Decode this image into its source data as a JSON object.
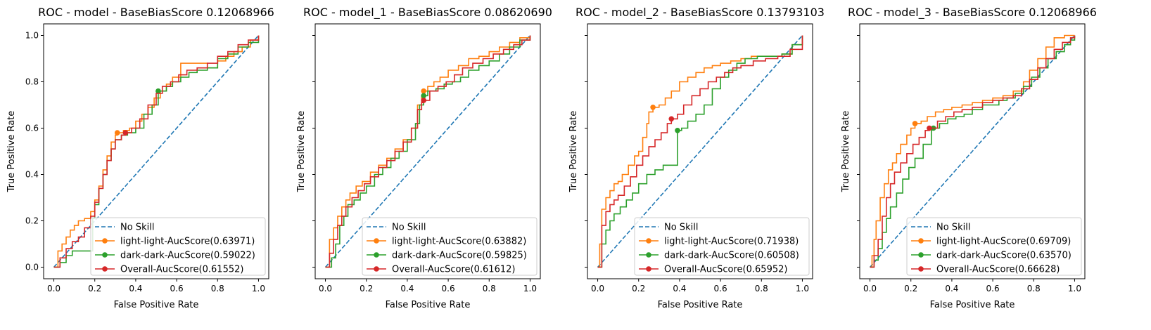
{
  "figure": {
    "x_label": "False Positive Rate",
    "y_label": "True Positive Rate",
    "x_ticks": [
      "0.0",
      "0.2",
      "0.4",
      "0.6",
      "0.8",
      "1.0"
    ],
    "y_ticks": [
      "0.0",
      "0.2",
      "0.4",
      "0.6",
      "0.8",
      "1.0"
    ],
    "colors": {
      "no_skill": "#1f77b4",
      "light": "#ff7f0e",
      "dark": "#2ca02c",
      "overall": "#d62728"
    }
  },
  "chart_data": [
    {
      "type": "line",
      "title": "ROC - model - BaseBiasScore 0.12068966",
      "xlabel": "False Positive Rate",
      "ylabel": "True Positive Rate",
      "xlim": [
        -0.05,
        1.05
      ],
      "ylim": [
        -0.05,
        1.05
      ],
      "grid": false,
      "legend_position": "lower-right",
      "series": [
        {
          "name": "No Skill",
          "color": "#1f77b4",
          "style": "dashed",
          "x": [
            0,
            1
          ],
          "y": [
            0,
            1
          ]
        },
        {
          "name": "light-light-AucScore(0.63971)",
          "color": "#ff7f0e",
          "style": "step",
          "x": [
            0,
            0.02,
            0.04,
            0.06,
            0.08,
            0.1,
            0.12,
            0.15,
            0.18,
            0.2,
            0.22,
            0.24,
            0.26,
            0.28,
            0.3,
            0.31,
            0.34,
            0.37,
            0.4,
            0.43,
            0.46,
            0.49,
            0.52,
            0.55,
            0.58,
            0.62,
            0.67,
            0.72,
            0.75,
            0.8,
            0.84,
            0.88,
            0.92,
            0.96,
            1.0
          ],
          "y": [
            0,
            0.07,
            0.1,
            0.13,
            0.16,
            0.18,
            0.2,
            0.21,
            0.24,
            0.29,
            0.35,
            0.42,
            0.48,
            0.54,
            0.57,
            0.58,
            0.59,
            0.6,
            0.63,
            0.66,
            0.69,
            0.73,
            0.76,
            0.79,
            0.82,
            0.88,
            0.88,
            0.88,
            0.86,
            0.89,
            0.91,
            0.93,
            0.95,
            0.98,
            1.0
          ],
          "marker": [
            0.31,
            0.58
          ]
        },
        {
          "name": "dark-dark-AucScore(0.59022)",
          "color": "#2ca02c",
          "style": "step",
          "x": [
            0,
            0.03,
            0.06,
            0.09,
            0.12,
            0.15,
            0.19,
            0.2,
            0.22,
            0.24,
            0.26,
            0.28,
            0.3,
            0.33,
            0.36,
            0.4,
            0.44,
            0.48,
            0.51,
            0.55,
            0.58,
            0.62,
            0.66,
            0.7,
            0.75,
            0.8,
            0.85,
            0.9,
            0.95,
            1.0
          ],
          "y": [
            0,
            0.02,
            0.05,
            0.07,
            0.07,
            0.07,
            0.21,
            0.27,
            0.34,
            0.4,
            0.46,
            0.51,
            0.55,
            0.57,
            0.58,
            0.6,
            0.66,
            0.7,
            0.76,
            0.78,
            0.8,
            0.82,
            0.84,
            0.85,
            0.86,
            0.9,
            0.92,
            0.95,
            0.97,
            1.0
          ],
          "marker": [
            0.51,
            0.76
          ]
        },
        {
          "name": "Overall-AucScore(0.61552)",
          "color": "#d62728",
          "style": "step",
          "x": [
            0,
            0.03,
            0.06,
            0.09,
            0.12,
            0.15,
            0.18,
            0.2,
            0.22,
            0.24,
            0.26,
            0.28,
            0.3,
            0.33,
            0.35,
            0.38,
            0.42,
            0.46,
            0.5,
            0.53,
            0.57,
            0.61,
            0.65,
            0.7,
            0.75,
            0.8,
            0.85,
            0.9,
            0.95,
            1.0
          ],
          "y": [
            0,
            0.04,
            0.08,
            0.11,
            0.13,
            0.17,
            0.22,
            0.28,
            0.34,
            0.4,
            0.46,
            0.51,
            0.55,
            0.57,
            0.58,
            0.6,
            0.64,
            0.7,
            0.75,
            0.78,
            0.8,
            0.83,
            0.85,
            0.86,
            0.88,
            0.91,
            0.93,
            0.96,
            0.98,
            1.0
          ],
          "marker": [
            0.35,
            0.58
          ]
        }
      ]
    },
    {
      "type": "line",
      "title": "ROC - model_1 - BaseBiasScore 0.08620690",
      "xlabel": "False Positive Rate",
      "ylabel": "True Positive Rate",
      "xlim": [
        -0.05,
        1.05
      ],
      "ylim": [
        -0.05,
        1.05
      ],
      "grid": false,
      "legend_position": "lower-right",
      "series": [
        {
          "name": "No Skill",
          "color": "#1f77b4",
          "style": "dashed",
          "x": [
            0,
            1
          ],
          "y": [
            0,
            1
          ]
        },
        {
          "name": "light-light-AucScore(0.63882)",
          "color": "#ff7f0e",
          "style": "step",
          "x": [
            0,
            0.02,
            0.04,
            0.06,
            0.08,
            0.1,
            0.12,
            0.15,
            0.18,
            0.22,
            0.26,
            0.3,
            0.34,
            0.38,
            0.42,
            0.45,
            0.47,
            0.48,
            0.5,
            0.53,
            0.56,
            0.6,
            0.65,
            0.7,
            0.75,
            0.8,
            0.85,
            0.9,
            0.95,
            1.0
          ],
          "y": [
            0,
            0.12,
            0.17,
            0.22,
            0.26,
            0.29,
            0.32,
            0.35,
            0.37,
            0.41,
            0.44,
            0.47,
            0.51,
            0.55,
            0.6,
            0.7,
            0.74,
            0.76,
            0.78,
            0.8,
            0.82,
            0.85,
            0.87,
            0.9,
            0.91,
            0.93,
            0.95,
            0.97,
            0.99,
            1.0
          ],
          "marker": [
            0.48,
            0.76
          ]
        },
        {
          "name": "dark-dark-AucScore(0.59825)",
          "color": "#2ca02c",
          "style": "step",
          "x": [
            0,
            0.03,
            0.05,
            0.07,
            0.09,
            0.11,
            0.14,
            0.17,
            0.2,
            0.24,
            0.28,
            0.32,
            0.36,
            0.4,
            0.44,
            0.46,
            0.48,
            0.5,
            0.54,
            0.58,
            0.62,
            0.66,
            0.7,
            0.75,
            0.8,
            0.85,
            0.9,
            0.95,
            1.0
          ],
          "y": [
            0,
            0.04,
            0.1,
            0.18,
            0.22,
            0.27,
            0.29,
            0.32,
            0.35,
            0.4,
            0.43,
            0.47,
            0.5,
            0.55,
            0.62,
            0.7,
            0.74,
            0.76,
            0.77,
            0.79,
            0.8,
            0.82,
            0.85,
            0.87,
            0.89,
            0.92,
            0.95,
            0.98,
            1.0
          ],
          "marker": [
            0.48,
            0.74
          ]
        },
        {
          "name": "Overall-AucScore(0.61612)",
          "color": "#d62728",
          "style": "step",
          "x": [
            0,
            0.02,
            0.04,
            0.06,
            0.08,
            0.1,
            0.13,
            0.16,
            0.19,
            0.22,
            0.26,
            0.3,
            0.34,
            0.38,
            0.42,
            0.45,
            0.47,
            0.48,
            0.51,
            0.55,
            0.59,
            0.63,
            0.67,
            0.72,
            0.77,
            0.82,
            0.87,
            0.92,
            0.96,
            1.0
          ],
          "y": [
            0,
            0.06,
            0.12,
            0.18,
            0.22,
            0.26,
            0.3,
            0.33,
            0.36,
            0.39,
            0.43,
            0.46,
            0.5,
            0.54,
            0.6,
            0.68,
            0.71,
            0.72,
            0.76,
            0.78,
            0.8,
            0.83,
            0.86,
            0.88,
            0.9,
            0.92,
            0.94,
            0.96,
            0.98,
            1.0
          ],
          "marker": [
            0.48,
            0.72
          ]
        }
      ]
    },
    {
      "type": "line",
      "title": "ROC - model_2 - BaseBiasScore 0.13793103",
      "xlabel": "False Positive Rate",
      "ylabel": "True Positive Rate",
      "xlim": [
        -0.05,
        1.05
      ],
      "ylim": [
        -0.05,
        1.05
      ],
      "grid": false,
      "legend_position": "lower-right",
      "series": [
        {
          "name": "No Skill",
          "color": "#1f77b4",
          "style": "dashed",
          "x": [
            0,
            1
          ],
          "y": [
            0,
            1
          ]
        },
        {
          "name": "light-light-AucScore(0.71938)",
          "color": "#ff7f0e",
          "style": "step",
          "x": [
            0,
            0.01,
            0.02,
            0.04,
            0.06,
            0.08,
            0.1,
            0.12,
            0.15,
            0.18,
            0.2,
            0.22,
            0.24,
            0.25,
            0.27,
            0.3,
            0.33,
            0.36,
            0.4,
            0.44,
            0.48,
            0.52,
            0.56,
            0.6,
            0.65,
            0.7,
            0.75,
            0.8,
            0.85,
            0.9,
            0.95,
            1.0
          ],
          "y": [
            0,
            0.1,
            0.25,
            0.3,
            0.33,
            0.36,
            0.37,
            0.4,
            0.44,
            0.48,
            0.5,
            0.56,
            0.62,
            0.67,
            0.69,
            0.7,
            0.73,
            0.76,
            0.8,
            0.82,
            0.84,
            0.86,
            0.87,
            0.88,
            0.89,
            0.9,
            0.91,
            0.91,
            0.91,
            0.92,
            0.96,
            1.0
          ],
          "marker": [
            0.27,
            0.69
          ]
        },
        {
          "name": "dark-dark-AucScore(0.60508)",
          "color": "#2ca02c",
          "style": "step",
          "x": [
            0,
            0.02,
            0.04,
            0.06,
            0.08,
            0.11,
            0.14,
            0.17,
            0.2,
            0.24,
            0.28,
            0.32,
            0.37,
            0.39,
            0.41,
            0.44,
            0.48,
            0.52,
            0.56,
            0.6,
            0.64,
            0.68,
            0.72,
            0.78,
            0.84,
            0.9,
            0.95,
            1.0
          ],
          "y": [
            0,
            0.1,
            0.16,
            0.2,
            0.23,
            0.26,
            0.29,
            0.32,
            0.36,
            0.4,
            0.42,
            0.44,
            0.44,
            0.59,
            0.6,
            0.63,
            0.66,
            0.7,
            0.77,
            0.82,
            0.85,
            0.88,
            0.9,
            0.91,
            0.91,
            0.92,
            0.96,
            1.0
          ],
          "marker": [
            0.39,
            0.59
          ]
        },
        {
          "name": "Overall-AucScore(0.65952)",
          "color": "#d62728",
          "style": "step",
          "x": [
            0,
            0.02,
            0.04,
            0.06,
            0.08,
            0.1,
            0.13,
            0.16,
            0.19,
            0.22,
            0.25,
            0.28,
            0.31,
            0.34,
            0.36,
            0.39,
            0.42,
            0.46,
            0.5,
            0.54,
            0.58,
            0.62,
            0.66,
            0.7,
            0.76,
            0.82,
            0.88,
            0.94,
            1.0
          ],
          "y": [
            0,
            0.18,
            0.24,
            0.27,
            0.29,
            0.31,
            0.35,
            0.39,
            0.44,
            0.48,
            0.52,
            0.55,
            0.58,
            0.62,
            0.64,
            0.66,
            0.7,
            0.74,
            0.77,
            0.8,
            0.82,
            0.84,
            0.86,
            0.87,
            0.89,
            0.9,
            0.91,
            0.94,
            1.0
          ],
          "marker": [
            0.36,
            0.64
          ]
        }
      ]
    },
    {
      "type": "line",
      "title": "ROC - model_3 - BaseBiasScore 0.12068966",
      "xlabel": "False Positive Rate",
      "ylabel": "True Positive Rate",
      "xlim": [
        -0.05,
        1.05
      ],
      "ylim": [
        -0.05,
        1.05
      ],
      "grid": false,
      "legend_position": "lower-right",
      "series": [
        {
          "name": "No Skill",
          "color": "#1f77b4",
          "style": "dashed",
          "x": [
            0,
            1
          ],
          "y": [
            0,
            1
          ]
        },
        {
          "name": "light-light-AucScore(0.69709)",
          "color": "#ff7f0e",
          "style": "step",
          "x": [
            0,
            0.01,
            0.02,
            0.03,
            0.05,
            0.07,
            0.09,
            0.11,
            0.13,
            0.15,
            0.18,
            0.2,
            0.22,
            0.25,
            0.28,
            0.32,
            0.36,
            0.4,
            0.45,
            0.5,
            0.55,
            0.6,
            0.65,
            0.7,
            0.75,
            0.78,
            0.82,
            0.86,
            0.9,
            0.95,
            1.0
          ],
          "y": [
            0,
            0.05,
            0.12,
            0.2,
            0.3,
            0.36,
            0.42,
            0.45,
            0.49,
            0.53,
            0.57,
            0.6,
            0.62,
            0.63,
            0.65,
            0.67,
            0.68,
            0.69,
            0.7,
            0.71,
            0.72,
            0.73,
            0.74,
            0.76,
            0.8,
            0.85,
            0.9,
            0.95,
            0.99,
            1.0,
            1.0
          ],
          "marker": [
            0.22,
            0.62
          ]
        },
        {
          "name": "dark-dark-AucScore(0.63570)",
          "color": "#2ca02c",
          "style": "step",
          "x": [
            0,
            0.02,
            0.04,
            0.06,
            0.08,
            0.1,
            0.13,
            0.16,
            0.19,
            0.22,
            0.26,
            0.3,
            0.34,
            0.38,
            0.42,
            0.46,
            0.5,
            0.55,
            0.6,
            0.63,
            0.67,
            0.71,
            0.75,
            0.79,
            0.83,
            0.87,
            0.91,
            0.95,
            0.98,
            1.0
          ],
          "y": [
            0,
            0.03,
            0.08,
            0.15,
            0.21,
            0.26,
            0.32,
            0.38,
            0.43,
            0.47,
            0.53,
            0.6,
            0.62,
            0.64,
            0.65,
            0.66,
            0.68,
            0.7,
            0.7,
            0.72,
            0.73,
            0.75,
            0.78,
            0.82,
            0.86,
            0.9,
            0.93,
            0.96,
            0.98,
            1.0
          ],
          "marker": [
            0.31,
            0.6
          ]
        },
        {
          "name": "Overall-AucScore(0.66628)",
          "color": "#d62728",
          "style": "step",
          "x": [
            0,
            0.02,
            0.04,
            0.06,
            0.08,
            0.1,
            0.12,
            0.15,
            0.18,
            0.21,
            0.24,
            0.27,
            0.29,
            0.33,
            0.37,
            0.41,
            0.45,
            0.5,
            0.55,
            0.6,
            0.65,
            0.7,
            0.74,
            0.78,
            0.82,
            0.86,
            0.9,
            0.94,
            0.98,
            1.0
          ],
          "y": [
            0,
            0.05,
            0.12,
            0.22,
            0.3,
            0.36,
            0.41,
            0.45,
            0.49,
            0.53,
            0.56,
            0.59,
            0.6,
            0.63,
            0.65,
            0.67,
            0.68,
            0.69,
            0.71,
            0.72,
            0.73,
            0.74,
            0.77,
            0.81,
            0.86,
            0.9,
            0.94,
            0.97,
            0.99,
            1.0
          ],
          "marker": [
            0.29,
            0.6
          ]
        }
      ]
    }
  ]
}
